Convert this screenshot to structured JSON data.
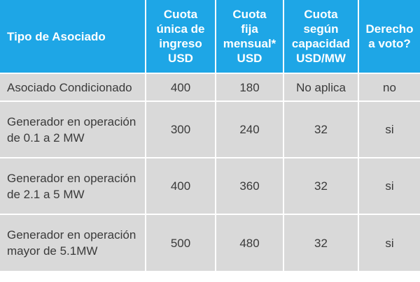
{
  "table": {
    "headers": [
      "Tipo de Asociado",
      "Cuota\núnica de\ningreso\nUSD",
      "Cuota\nfija\nmensual*\nUSD",
      "Cuota\nsegún\ncapacidad\nUSD/MW",
      "Derecho\na voto?"
    ],
    "rows": [
      [
        "Asociado Condicionado",
        "400",
        "180",
        "No aplica",
        "no"
      ],
      [
        "Generador en operación de 0.1 a 2 MW",
        "300",
        "240",
        "32",
        "si"
      ],
      [
        "Generador en operación de 2.1 a 5 MW",
        "400",
        "360",
        "32",
        "si"
      ],
      [
        "Generador en operación mayor de 5.1MW",
        "500",
        "480",
        "32",
        "si"
      ]
    ]
  },
  "colors": {
    "header_bg": "#1ea6e6",
    "header_text": "#ffffff",
    "row_bg": "#d9d9d9",
    "row_text": "#3a3a3a"
  }
}
